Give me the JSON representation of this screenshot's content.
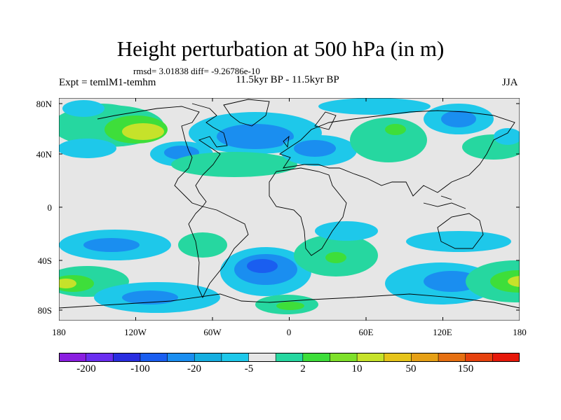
{
  "title": "Height perturbation at 500 hPa (in m)",
  "stats": "rmsd= 3.01838 diff= -9.26786e-10",
  "expt": "Expt = temlM1-temhm",
  "subtitle": "11.5kyr BP - 11.5kyr BP",
  "season": "JJA",
  "y_ticks": [
    "80N",
    "40N",
    "0",
    "40S",
    "80S"
  ],
  "x_ticks": [
    "180",
    "120W",
    "60W",
    "0",
    "60E",
    "120E",
    "180"
  ],
  "colorbar": {
    "colors": [
      "#8a1ee0",
      "#6a2ef0",
      "#2a2ee0",
      "#1a5ef0",
      "#1a8ef0",
      "#16aee0",
      "#1ec8ea",
      "#e6e6e6",
      "#26d7a0",
      "#3ede3a",
      "#7ee02a",
      "#c6e22a",
      "#e6c41a",
      "#e6a016",
      "#e67012",
      "#e6420e",
      "#e6180a"
    ],
    "labels": [
      "-200",
      "-100",
      "-20",
      "-5",
      "2",
      "10",
      "50",
      "150"
    ]
  },
  "map_data": {
    "variable": "Height perturbation at 500 hPa",
    "units": "m",
    "lon_range": [
      -180,
      180
    ],
    "lat_range": [
      -90,
      90
    ],
    "anomaly_regions": [
      {
        "region": "North Pacific / Alaska",
        "sign": "positive",
        "peak_class": "10 to 50"
      },
      {
        "region": "Gulf of Alaska",
        "sign": "negative",
        "peak_class": "-5 to -2"
      },
      {
        "region": "Canadian Arctic / Greenland",
        "sign": "negative",
        "peak_class": "-20 to -5"
      },
      {
        "region": "Eastern North America",
        "sign": "negative",
        "peak_class": "-20 to -5"
      },
      {
        "region": "Europe",
        "sign": "negative",
        "peak_class": "-20 to -5"
      },
      {
        "region": "Western Siberia",
        "sign": "positive",
        "peak_class": "10 to 50"
      },
      {
        "region": "East Asia / North Pacific",
        "sign": "negative",
        "peak_class": "-20 to -5"
      },
      {
        "region": "Southern Ocean Pacific sector",
        "sign": "negative",
        "peak_class": "-20 to -5"
      },
      {
        "region": "South Atlantic",
        "sign": "negative",
        "peak_class": "-20 to -5"
      },
      {
        "region": "Southern Indian Ocean",
        "sign": "positive",
        "peak_class": "10 to 50"
      },
      {
        "region": "South Pacific (near 180)",
        "sign": "positive",
        "peak_class": "10 to 50"
      }
    ]
  }
}
